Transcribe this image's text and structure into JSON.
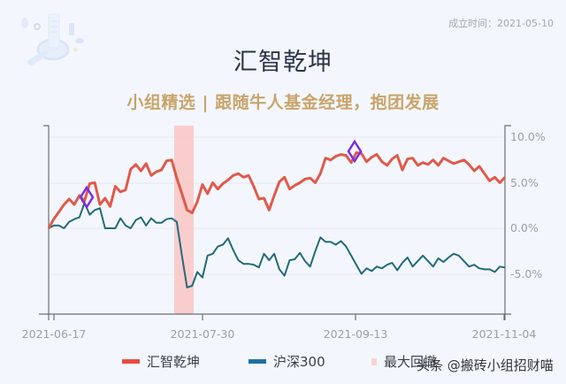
{
  "header": {
    "established_label": "成立时间：2021-05-10",
    "title": "汇智乾坤",
    "subtitle": "小组精选 | 跟随牛人基金经理，抱团发展"
  },
  "legend": {
    "series1": "汇智乾坤",
    "series2": "沪深300",
    "drawdown": "最大回撤"
  },
  "watermark": "头条 @搬砖小组招财喵",
  "colors": {
    "fund": "#e05a4a",
    "index": "#236a7a",
    "drawdown": "#f9c6c3",
    "marker": "#7b2ee0",
    "legend_index": "#1f6fa3"
  },
  "chart_data": {
    "type": "line",
    "title": "汇智乾坤",
    "subtitle": "小组精选 | 跟随牛人基金经理，抱团发展",
    "xlabel": "",
    "ylabel": "",
    "y_axis_position": "right",
    "ylim": [
      -9,
      11
    ],
    "yticks": [
      "10.0%",
      "5.0%",
      "0.0%",
      "-5.0%"
    ],
    "xticks": [
      "2021-06-17",
      "2021-07-30",
      "2021-09-13",
      "2021-11-04"
    ],
    "grid": true,
    "legend_position": "bottom",
    "x_range": [
      "2021-06-16",
      "2021-11-05"
    ],
    "series": [
      {
        "name": "汇智乾坤",
        "color": "#e05a4a",
        "values": [
          0.0,
          1.0,
          1.8,
          2.6,
          3.2,
          2.6,
          3.6,
          3.0,
          4.9,
          5.0,
          2.6,
          3.3,
          2.4,
          4.6,
          4.0,
          4.2,
          6.5,
          7.0,
          6.3,
          7.1,
          5.8,
          6.2,
          6.4,
          7.4,
          7.5,
          5.5,
          3.8,
          2.0,
          1.7,
          2.9,
          4.8,
          3.8,
          5.0,
          4.3,
          4.9,
          5.3,
          5.8,
          6.0,
          5.6,
          5.8,
          4.6,
          3.2,
          3.3,
          2.0,
          3.6,
          5.1,
          5.6,
          4.3,
          4.7,
          5.0,
          5.4,
          5.5,
          5.0,
          6.0,
          7.7,
          7.5,
          7.9,
          8.1,
          8.0,
          7.2,
          8.3,
          8.2,
          7.3,
          7.8,
          8.1,
          7.3,
          6.9,
          7.6,
          8.0,
          6.4,
          7.6,
          7.7,
          6.9,
          7.2,
          7.0,
          7.5,
          6.9,
          7.7,
          7.4,
          7.1,
          7.3,
          7.5,
          7.0,
          6.3,
          6.8,
          6.0,
          5.2,
          5.6,
          5.0,
          5.6
        ]
      },
      {
        "name": "沪深300",
        "color": "#236a7a",
        "values": [
          0.0,
          0.3,
          0.3,
          0.0,
          0.7,
          1.0,
          1.2,
          2.8,
          1.5,
          2.0,
          2.2,
          0.0,
          0.0,
          0.0,
          1.1,
          0.3,
          0.0,
          0.9,
          1.2,
          0.3,
          1.1,
          0.6,
          0.6,
          1.0,
          1.1,
          0.7,
          -3.0,
          -6.5,
          -6.3,
          -4.8,
          -5.4,
          -3.0,
          -2.8,
          -2.0,
          -1.8,
          -1.1,
          -2.4,
          -3.5,
          -3.9,
          -3.9,
          -4.0,
          -4.3,
          -2.8,
          -3.5,
          -2.8,
          -4.5,
          -5.2,
          -3.5,
          -3.4,
          -2.7,
          -3.6,
          -4.2,
          -2.5,
          -1.0,
          -1.5,
          -1.5,
          -1.8,
          -1.4,
          -2.0,
          -3.0,
          -4.0,
          -5.0,
          -4.4,
          -4.7,
          -4.2,
          -4.4,
          -4.0,
          -3.8,
          -4.6,
          -3.8,
          -3.2,
          -4.2,
          -3.6,
          -3.0,
          -3.6,
          -4.2,
          -3.3,
          -3.7,
          -3.2,
          -2.8,
          -3.0,
          -3.6,
          -4.2,
          -4.0,
          -4.4,
          -4.5,
          -4.5,
          -4.8,
          -4.2,
          -4.3
        ]
      }
    ],
    "annotations": [
      {
        "type": "max_drawdown_band",
        "label": "最大回撤",
        "approx_start": "2021-07-26",
        "approx_end": "2021-07-29"
      },
      {
        "type": "diamond_marker",
        "series": "汇智乾坤",
        "approx_date": "2021-06-24",
        "value": 3.2
      },
      {
        "type": "diamond_marker",
        "series": "汇智乾坤",
        "approx_date": "2021-09-13",
        "value": 8.3
      }
    ]
  }
}
